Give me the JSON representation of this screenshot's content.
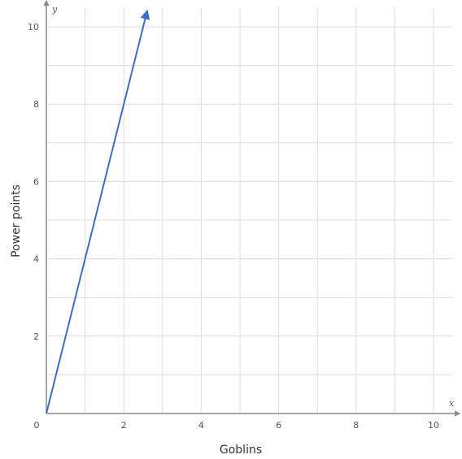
{
  "chart_data": {
    "type": "line",
    "xlabel": "Goblins",
    "ylabel": "Power points",
    "x_axis_letter": "x",
    "y_axis_letter": "y",
    "xlim": [
      0,
      10.5
    ],
    "ylim": [
      0,
      10.5
    ],
    "x_ticks": [
      0,
      2,
      4,
      6,
      8,
      10
    ],
    "y_ticks": [
      2,
      4,
      6,
      8,
      10
    ],
    "x_gridlines": [
      1,
      2,
      3,
      4,
      5,
      6,
      7,
      8,
      9,
      10
    ],
    "y_gridlines": [
      1,
      2,
      3,
      4,
      5,
      6,
      7,
      8,
      9,
      10
    ],
    "grid": true,
    "series": [
      {
        "color": "#3a6fc9",
        "x": [
          0,
          2.6
        ],
        "y": [
          0,
          10.4
        ],
        "end_arrow": true
      }
    ],
    "colors": {
      "grid": "#dcdcdc",
      "axis": "#8a8a8a"
    }
  }
}
